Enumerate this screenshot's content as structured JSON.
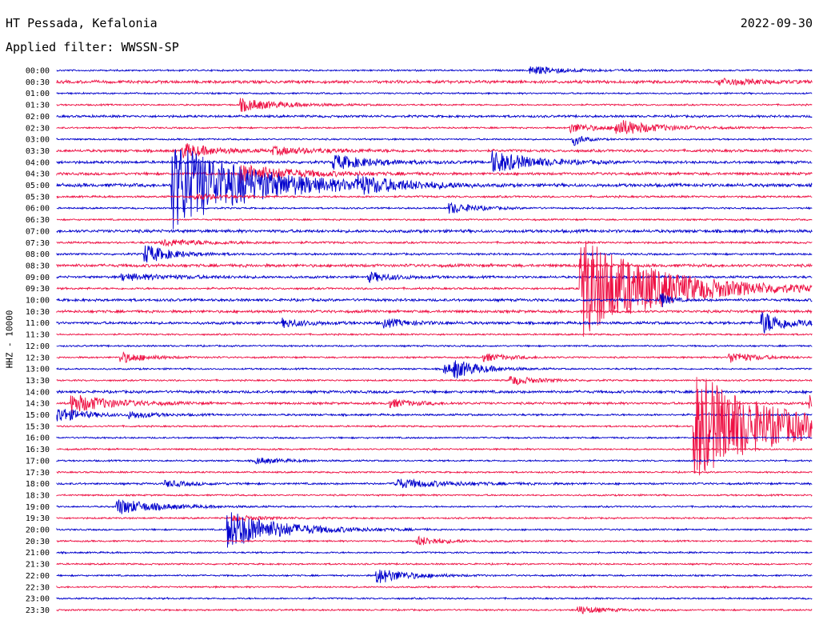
{
  "header": {
    "station": "HT Pessada, Kefalonia",
    "date": "2022-09-30",
    "filter": "Applied filter: WWSSN-SP"
  },
  "colors": {
    "even": "#0000cc",
    "odd": "#ee1144",
    "background": "#ffffff"
  },
  "chart_data": {
    "type": "line",
    "title": "",
    "ylabel": "HHZ - 10000",
    "rows": [
      "00:00",
      "00:30",
      "01:00",
      "01:30",
      "02:00",
      "02:30",
      "03:00",
      "03:30",
      "04:00",
      "04:30",
      "05:00",
      "05:30",
      "06:00",
      "06:30",
      "07:00",
      "07:30",
      "08:00",
      "08:30",
      "09:00",
      "09:30",
      "10:00",
      "10:30",
      "11:00",
      "11:30",
      "12:00",
      "12:30",
      "13:00",
      "13:30",
      "14:00",
      "14:30",
      "15:00",
      "15:30",
      "16:00",
      "16:30",
      "17:00",
      "17:30",
      "18:00",
      "18:30",
      "19:00",
      "19:30",
      "20:00",
      "20:30",
      "21:00",
      "21:30",
      "22:00",
      "22:30",
      "23:00",
      "23:30"
    ],
    "row_minutes": 30,
    "noise_level": [
      1,
      1.8,
      1,
      1,
      1.4,
      1,
      1,
      1.6,
      1.6,
      1.6,
      2,
      1.2,
      1,
      1,
      1.8,
      1.2,
      1.2,
      1.8,
      1.4,
      1.2,
      1.6,
      1.6,
      1.6,
      1,
      1,
      1,
      1,
      1,
      1.6,
      1.4,
      1.2,
      1,
      1,
      1,
      1,
      1,
      1.2,
      1,
      1,
      1,
      1,
      1,
      1,
      1,
      1,
      1,
      1,
      1
    ],
    "events": [
      {
        "row": 0,
        "minute": 18.8,
        "amp": 5,
        "dur": 1.5
      },
      {
        "row": 1,
        "minute": 26.3,
        "amp": 4,
        "dur": 1.5
      },
      {
        "row": 3,
        "minute": 7.3,
        "amp": 8,
        "dur": 1.5
      },
      {
        "row": 5,
        "minute": 20.4,
        "amp": 6,
        "dur": 1
      },
      {
        "row": 5,
        "minute": 22.2,
        "amp": 10,
        "dur": 1.5
      },
      {
        "row": 6,
        "minute": 20.5,
        "amp": 8,
        "dur": 0.4
      },
      {
        "row": 7,
        "minute": 5.0,
        "amp": 9,
        "dur": 1.2
      },
      {
        "row": 7,
        "minute": 8.6,
        "amp": 4,
        "dur": 2
      },
      {
        "row": 8,
        "minute": 11.0,
        "amp": 9,
        "dur": 1.5
      },
      {
        "row": 8,
        "minute": 17.3,
        "amp": 14,
        "dur": 1.5
      },
      {
        "row": 9,
        "minute": 7.3,
        "amp": 12,
        "dur": 2
      },
      {
        "row": 10,
        "minute": 4.6,
        "amp": 55,
        "dur": 3
      },
      {
        "row": 10,
        "minute": 11.9,
        "amp": 8,
        "dur": 1.5
      },
      {
        "row": 11,
        "minute": 5.5,
        "amp": 4,
        "dur": 1
      },
      {
        "row": 12,
        "minute": 15.6,
        "amp": 7,
        "dur": 1
      },
      {
        "row": 15,
        "minute": 4.2,
        "amp": 4,
        "dur": 2
      },
      {
        "row": 16,
        "minute": 3.5,
        "amp": 12,
        "dur": 1
      },
      {
        "row": 18,
        "minute": 2.6,
        "amp": 4,
        "dur": 2
      },
      {
        "row": 18,
        "minute": 12.4,
        "amp": 6,
        "dur": 1
      },
      {
        "row": 19,
        "minute": 20.8,
        "amp": 65,
        "dur": 3
      },
      {
        "row": 20,
        "minute": 24.0,
        "amp": 10,
        "dur": 0.3
      },
      {
        "row": 22,
        "minute": 9.0,
        "amp": 5,
        "dur": 1
      },
      {
        "row": 22,
        "minute": 13.0,
        "amp": 5,
        "dur": 1
      },
      {
        "row": 22,
        "minute": 28.0,
        "amp": 14,
        "dur": 1
      },
      {
        "row": 25,
        "minute": 2.5,
        "amp": 7,
        "dur": 1
      },
      {
        "row": 25,
        "minute": 16.9,
        "amp": 5,
        "dur": 1
      },
      {
        "row": 25,
        "minute": 26.7,
        "amp": 7,
        "dur": 1
      },
      {
        "row": 26,
        "minute": 15.4,
        "amp": 6,
        "dur": 1
      },
      {
        "row": 26,
        "minute": 15.8,
        "amp": 8,
        "dur": 1
      },
      {
        "row": 27,
        "minute": 18.0,
        "amp": 6,
        "dur": 1
      },
      {
        "row": 29,
        "minute": 0.6,
        "amp": 12,
        "dur": 1.5
      },
      {
        "row": 29,
        "minute": 13.2,
        "amp": 5,
        "dur": 1
      },
      {
        "row": 29,
        "minute": 29.9,
        "amp": 10,
        "dur": 0.4
      },
      {
        "row": 30,
        "minute": 0.0,
        "amp": 10,
        "dur": 1
      },
      {
        "row": 30,
        "minute": 2.9,
        "amp": 4,
        "dur": 1
      },
      {
        "row": 31,
        "minute": 25.3,
        "amp": 70,
        "dur": 3
      },
      {
        "row": 34,
        "minute": 7.9,
        "amp": 4,
        "dur": 1
      },
      {
        "row": 36,
        "minute": 4.3,
        "amp": 4,
        "dur": 1
      },
      {
        "row": 36,
        "minute": 13.4,
        "amp": 6,
        "dur": 2
      },
      {
        "row": 38,
        "minute": 2.4,
        "amp": 10,
        "dur": 1.5
      },
      {
        "row": 39,
        "minute": 7.0,
        "amp": 4,
        "dur": 1
      },
      {
        "row": 40,
        "minute": 6.8,
        "amp": 24,
        "dur": 2
      },
      {
        "row": 41,
        "minute": 14.3,
        "amp": 6,
        "dur": 1
      },
      {
        "row": 44,
        "minute": 12.7,
        "amp": 10,
        "dur": 1.2
      },
      {
        "row": 47,
        "minute": 20.7,
        "amp": 5,
        "dur": 1
      }
    ]
  }
}
